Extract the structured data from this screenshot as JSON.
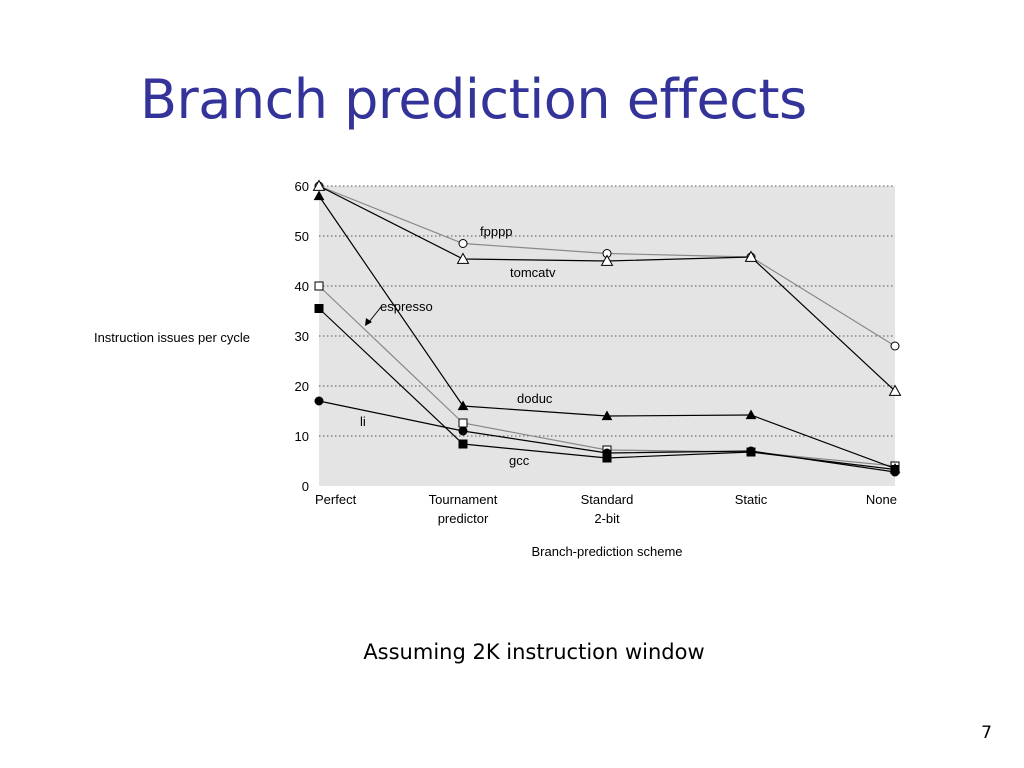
{
  "slide": {
    "title": "Branch prediction effects",
    "caption": "Assuming 2K instruction window",
    "page_number": "7"
  },
  "chart_data": {
    "type": "line",
    "ylabel": "Instruction issues per cycle",
    "xlabel": "Branch-prediction scheme",
    "categories": [
      [
        "Perfect"
      ],
      [
        "Tournament",
        "predictor"
      ],
      [
        "Standard",
        "2-bit"
      ],
      [
        "Static"
      ],
      [
        "None"
      ]
    ],
    "ylim": [
      0,
      60
    ],
    "yticks": [
      0,
      10,
      20,
      30,
      40,
      50,
      60
    ],
    "grid": true,
    "background": "#e4e4e4",
    "series": [
      {
        "name": "fpppp",
        "values": [
          60,
          48.5,
          46.5,
          45.8,
          28
        ],
        "marker": "circle-open",
        "color": "#888888"
      },
      {
        "name": "tomcatv",
        "values": [
          60,
          45.4,
          45,
          45.8,
          19
        ],
        "marker": "triangle-open",
        "color": "#000000"
      },
      {
        "name": "espresso",
        "values": [
          40,
          12.6,
          7.2,
          6.8,
          4
        ],
        "marker": "square-open",
        "color": "#888888"
      },
      {
        "name": "doduc",
        "values": [
          58,
          16,
          14,
          14.2,
          3.5
        ],
        "marker": "triangle-filled",
        "color": "#000000"
      },
      {
        "name": "li",
        "values": [
          17,
          11,
          6.6,
          7,
          2.8
        ],
        "marker": "circle-filled",
        "color": "#000000"
      },
      {
        "name": "gcc",
        "values": [
          35.5,
          8.4,
          5.6,
          6.8,
          3.3
        ],
        "marker": "square-filled",
        "color": "#000000"
      }
    ]
  }
}
